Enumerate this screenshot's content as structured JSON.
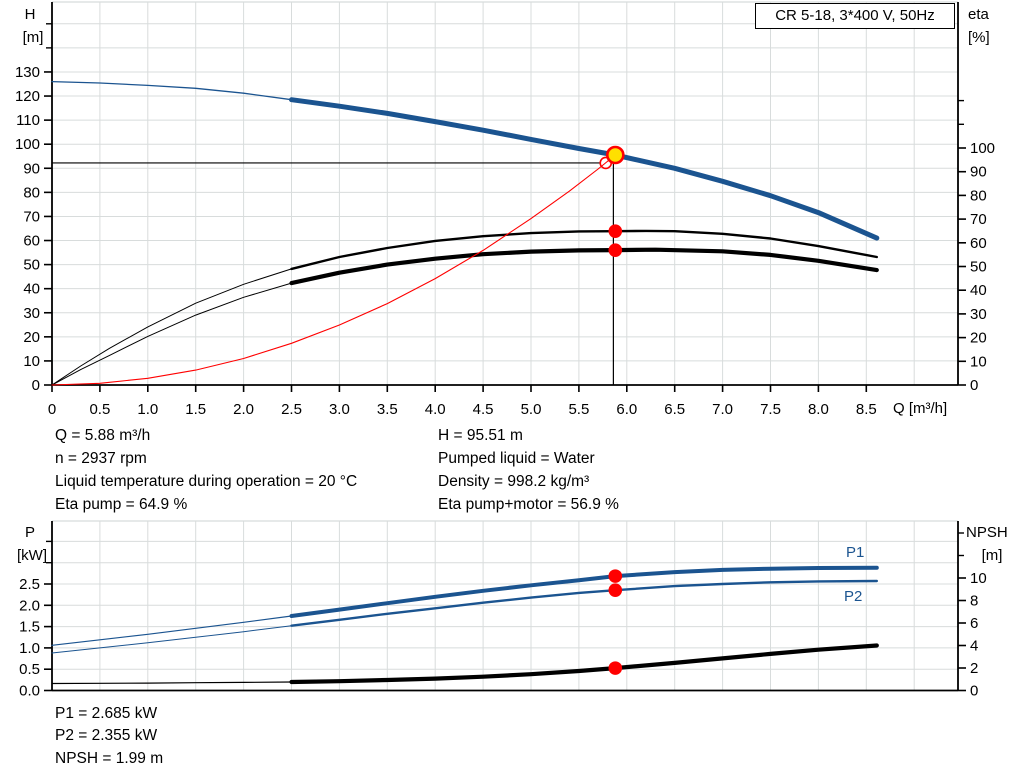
{
  "title_box": "CR 5-18, 3*400 V, 50Hz",
  "colors": {
    "blue": "#1b5490",
    "red": "#ff0000",
    "black": "#000000",
    "yellow": "#ffe000",
    "grid": "#d8dcdc",
    "label_blue": "#1b5490"
  },
  "chart1": {
    "h_title": "H",
    "h_unit": "[m]",
    "eta_title": "eta",
    "eta_unit": "[%]",
    "q_title": "Q [m³/h]",
    "info_left": [
      "Q = 5.88 m³/h",
      "n = 2937 rpm",
      "Liquid temperature during operation = 20 °C",
      "Eta pump = 64.9 %"
    ],
    "info_right": [
      "H = 95.51 m",
      "Pumped liquid = Water",
      "Density = 998.2 kg/m³",
      "Eta pump+motor = 56.9 %"
    ]
  },
  "chart2": {
    "p_title": "P",
    "p_unit": "[kW]",
    "npsh_title": "NPSH",
    "npsh_unit": "[m]",
    "p1_label": "P1",
    "p2_label": "P2",
    "info": [
      "P1 = 2.685 kW",
      "P2 = 2.355 kW",
      "NPSH = 1.99 m"
    ]
  },
  "chart_data": [
    {
      "type": "line",
      "name": "pump-performance-curve",
      "title": "CR 5-18, 3*400 V, 50Hz",
      "xlabel": "Q [m³/h]",
      "x_range": [
        0,
        9.45
      ],
      "left_axis": "H",
      "left_label": "H [m]",
      "left_range": [
        0,
        159
      ],
      "right_axis": "eta",
      "right_label": "eta [%]",
      "right_range": [
        0,
        161
      ],
      "x_tick_labels": [
        "0",
        "0.5",
        "1.0",
        "1.5",
        "2.0",
        "2.5",
        "3.0",
        "3.5",
        "4.0",
        "4.5",
        "5.0",
        "5.5",
        "6.0",
        "6.5",
        "7.0",
        "7.5",
        "8.0",
        "8.5"
      ],
      "left_tick_labels": [
        "0",
        "10",
        "20",
        "30",
        "40",
        "50",
        "60",
        "70",
        "80",
        "90",
        "100",
        "110",
        "120",
        "130"
      ],
      "left_extra_ticks": [
        140,
        150
      ],
      "right_tick_labels": [
        "0",
        "10",
        "20",
        "30",
        "40",
        "50",
        "60",
        "70",
        "80",
        "90",
        "100"
      ],
      "right_extra_ticks": [
        110,
        120
      ],
      "series": [
        {
          "name": "qh-curve",
          "axis": "H",
          "color": "blue",
          "split": 2.5,
          "thin": 1.3,
          "width": 5,
          "points": [
            [
              0,
              126
            ],
            [
              0.5,
              125.4
            ],
            [
              1,
              124.4
            ],
            [
              1.5,
              123.2
            ],
            [
              2,
              121.2
            ],
            [
              2.5,
              118.5
            ],
            [
              3,
              115.8
            ],
            [
              3.5,
              112.8
            ],
            [
              4,
              109.4
            ],
            [
              4.5,
              105.8
            ],
            [
              5,
              102.0
            ],
            [
              5.5,
              98.2
            ],
            [
              5.88,
              95.51
            ],
            [
              6.5,
              90.0
            ],
            [
              7,
              84.6
            ],
            [
              7.5,
              78.6
            ],
            [
              8,
              71.6
            ],
            [
              8.61,
              61.0
            ]
          ]
        },
        {
          "name": "eta-pump-curve",
          "axis": "eta",
          "color": "black",
          "split": 2.5,
          "thin": 1.0,
          "width": 2.4,
          "points": [
            [
              0,
              0
            ],
            [
              0.3,
              8
            ],
            [
              0.6,
              15.5
            ],
            [
              1,
              24.5
            ],
            [
              1.5,
              34.5
            ],
            [
              2,
              42.5
            ],
            [
              2.5,
              49
            ],
            [
              3,
              54
            ],
            [
              3.5,
              57.8
            ],
            [
              4,
              60.8
            ],
            [
              4.5,
              62.8
            ],
            [
              5,
              64.1
            ],
            [
              5.5,
              64.8
            ],
            [
              5.88,
              64.9
            ],
            [
              6.2,
              65
            ],
            [
              6.5,
              64.9
            ],
            [
              7,
              63.8
            ],
            [
              7.5,
              61.8
            ],
            [
              8,
              58.6
            ],
            [
              8.61,
              54
            ]
          ]
        },
        {
          "name": "eta-pump-motor-curve",
          "axis": "eta",
          "color": "black",
          "split": 2.5,
          "thin": 1.0,
          "width": 4.2,
          "points": [
            [
              0,
              0
            ],
            [
              0.3,
              6.5
            ],
            [
              0.6,
              12.5
            ],
            [
              1,
              20.5
            ],
            [
              1.5,
              29.5
            ],
            [
              2,
              37
            ],
            [
              2.5,
              43
            ],
            [
              3,
              47.4
            ],
            [
              3.5,
              50.8
            ],
            [
              4,
              53.3
            ],
            [
              4.5,
              55.2
            ],
            [
              5,
              56.3
            ],
            [
              5.5,
              56.8
            ],
            [
              5.88,
              56.9
            ],
            [
              6.3,
              57.1
            ],
            [
              7,
              56.4
            ],
            [
              7.5,
              54.9
            ],
            [
              8,
              52.4
            ],
            [
              8.61,
              48.5
            ]
          ]
        },
        {
          "name": "system-curve",
          "axis": "H",
          "color": "red",
          "width": 1.1,
          "points": [
            [
              0,
              0
            ],
            [
              0.5,
              0.7
            ],
            [
              1,
              2.8
            ],
            [
              1.5,
              6.2
            ],
            [
              2,
              11
            ],
            [
              2.5,
              17.3
            ],
            [
              3,
              24.9
            ],
            [
              3.5,
              33.8
            ],
            [
              4,
              44.2
            ],
            [
              4.5,
              55.9
            ],
            [
              5,
              69.1
            ],
            [
              5.4,
              80.5
            ],
            [
              5.7,
              89.7
            ],
            [
              5.88,
              95.51
            ]
          ]
        }
      ],
      "crosshair": {
        "axis": "H",
        "h_value": 92.2,
        "h_to_q": 5.78,
        "v_q": 5.86,
        "v_top_value": 94.5
      },
      "markers": [
        {
          "type": "open",
          "axis": "H",
          "q": 5.78,
          "v": 92.2
        },
        {
          "type": "duty",
          "axis": "H",
          "q": 5.88,
          "v": 95.51
        },
        {
          "type": "dot",
          "axis": "eta",
          "q": 5.88,
          "v": 64.9
        },
        {
          "type": "dot",
          "axis": "eta",
          "q": 5.88,
          "v": 56.9
        }
      ],
      "duty_point": {
        "Q": 5.88,
        "H": 95.51,
        "eta_pump": 64.9,
        "eta_pump_motor": 56.9,
        "n_rpm": 2937,
        "liquid_temp_C": 20,
        "density_kg_m3": 998.2
      }
    },
    {
      "type": "line",
      "name": "power-npsh-curve",
      "xlabel": "",
      "x_range": [
        0,
        9.45
      ],
      "left_axis": "P",
      "left_label": "P [kW]",
      "left_range": [
        0,
        4.0
      ],
      "right_axis": "NPSH",
      "right_label": "NPSH [m]",
      "right_range": [
        0,
        15.1
      ],
      "left_tick_labels": [
        "0.0",
        "0.5",
        "1.0",
        "1.5",
        "2.0",
        "2.5"
      ],
      "left_extra_ticks": [
        3.0,
        3.5
      ],
      "right_tick_labels": [
        "0",
        "2",
        "4",
        "6",
        "8",
        "10"
      ],
      "right_extra_ticks": [
        12,
        14
      ],
      "series": [
        {
          "name": "p1-curve",
          "axis": "P",
          "color": "blue",
          "split": 2.5,
          "thin": 1.2,
          "width": 4,
          "points": [
            [
              0,
              1.06
            ],
            [
              0.5,
              1.19
            ],
            [
              1,
              1.32
            ],
            [
              1.5,
              1.46
            ],
            [
              2,
              1.6
            ],
            [
              2.5,
              1.75
            ],
            [
              3,
              1.9
            ],
            [
              3.5,
              2.05
            ],
            [
              4,
              2.2
            ],
            [
              4.5,
              2.34
            ],
            [
              5,
              2.47
            ],
            [
              5.5,
              2.59
            ],
            [
              5.88,
              2.685
            ],
            [
              6.5,
              2.78
            ],
            [
              7,
              2.83
            ],
            [
              7.5,
              2.86
            ],
            [
              8,
              2.875
            ],
            [
              8.61,
              2.88
            ]
          ]
        },
        {
          "name": "p2-curve",
          "axis": "P",
          "color": "blue",
          "split": 2.5,
          "thin": 1.0,
          "width": 2.4,
          "points": [
            [
              0,
              0.88
            ],
            [
              0.5,
              1.0
            ],
            [
              1,
              1.12
            ],
            [
              1.5,
              1.25
            ],
            [
              2,
              1.38
            ],
            [
              2.5,
              1.52
            ],
            [
              3,
              1.66
            ],
            [
              3.5,
              1.8
            ],
            [
              4,
              1.93
            ],
            [
              4.5,
              2.06
            ],
            [
              5,
              2.18
            ],
            [
              5.5,
              2.29
            ],
            [
              5.88,
              2.355
            ],
            [
              6.5,
              2.45
            ],
            [
              7,
              2.5
            ],
            [
              7.5,
              2.54
            ],
            [
              8,
              2.56
            ],
            [
              8.61,
              2.57
            ]
          ]
        },
        {
          "name": "npsh-curve",
          "axis": "NPSH",
          "color": "black",
          "split": 2.5,
          "thin": 1.2,
          "width": 4.2,
          "points": [
            [
              0,
              0.62
            ],
            [
              0.5,
              0.64
            ],
            [
              1,
              0.66
            ],
            [
              1.5,
              0.69
            ],
            [
              2,
              0.72
            ],
            [
              2.5,
              0.76
            ],
            [
              3,
              0.83
            ],
            [
              3.5,
              0.93
            ],
            [
              4,
              1.06
            ],
            [
              4.5,
              1.23
            ],
            [
              5,
              1.45
            ],
            [
              5.5,
              1.73
            ],
            [
              5.88,
              1.99
            ],
            [
              6.5,
              2.45
            ],
            [
              7,
              2.85
            ],
            [
              7.5,
              3.25
            ],
            [
              8,
              3.63
            ],
            [
              8.61,
              4.0
            ]
          ]
        }
      ],
      "markers": [
        {
          "type": "dot",
          "axis": "P",
          "q": 5.88,
          "v": 2.685
        },
        {
          "type": "dot",
          "axis": "P",
          "q": 5.88,
          "v": 2.355
        },
        {
          "type": "dot",
          "axis": "NPSH",
          "q": 5.88,
          "v": 1.99
        }
      ],
      "duty_point": {
        "P1_kW": 2.685,
        "P2_kW": 2.355,
        "NPSH_m": 1.99
      }
    }
  ]
}
